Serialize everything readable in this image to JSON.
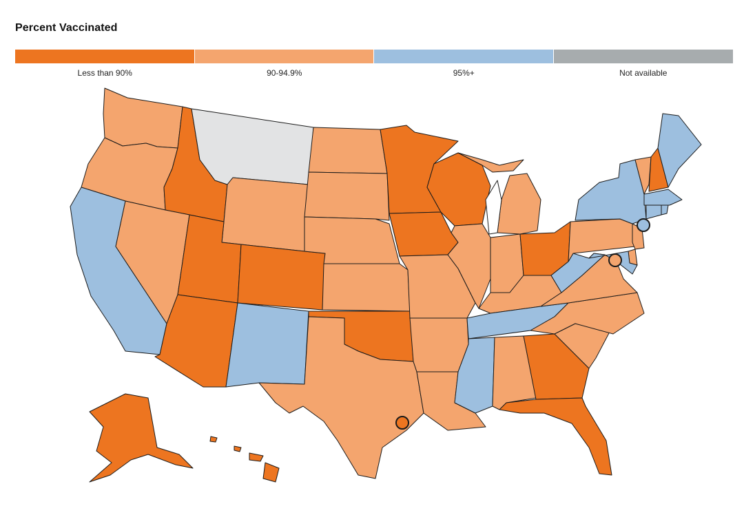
{
  "title": "Percent Vaccinated",
  "colors": {
    "less_than_90": "#ed7520",
    "range_90_94": "#f4a56e",
    "over_95": "#9dbfdf",
    "not_available": "#a7acae",
    "no_data_state": "#e2e3e4",
    "lakes": "#ffffff"
  },
  "legend": {
    "items": [
      {
        "label": "Less than 90%",
        "category": "less_than_90"
      },
      {
        "label": "90-94.9%",
        "category": "range_90_94"
      },
      {
        "label": "95%+",
        "category": "over_95"
      },
      {
        "label": "Not available",
        "category": "not_available"
      }
    ]
  },
  "states": {
    "WA": "range_90_94",
    "OR": "range_90_94",
    "CA": "over_95",
    "ID": "less_than_90",
    "NV": "range_90_94",
    "MT": "no_data_state",
    "WY": "range_90_94",
    "UT": "less_than_90",
    "AZ": "less_than_90",
    "CO": "less_than_90",
    "NM": "over_95",
    "ND": "range_90_94",
    "SD": "range_90_94",
    "NE": "range_90_94",
    "KS": "range_90_94",
    "OK": "less_than_90",
    "TX": "range_90_94",
    "MN": "less_than_90",
    "IA": "less_than_90",
    "MO": "range_90_94",
    "AR": "range_90_94",
    "LA": "range_90_94",
    "WI": "less_than_90",
    "IL": "range_90_94",
    "MI": "range_90_94",
    "IN": "range_90_94",
    "OH": "less_than_90",
    "KY": "range_90_94",
    "TN": "over_95",
    "MS": "over_95",
    "AL": "range_90_94",
    "GA": "less_than_90",
    "FL": "less_than_90",
    "SC": "range_90_94",
    "NC": "range_90_94",
    "VA": "range_90_94",
    "WV": "over_95",
    "PA": "range_90_94",
    "NY": "over_95",
    "NJ": "range_90_94",
    "DE": "range_90_94",
    "MD": "over_95",
    "VT": "range_90_94",
    "NH": "less_than_90",
    "ME": "over_95",
    "MA": "over_95",
    "CT": "over_95",
    "RI": "over_95",
    "AK": "less_than_90",
    "HI": "less_than_90"
  },
  "city_markers": {
    "NYC": "over_95",
    "Washington DC": "range_90_94",
    "Houston": "less_than_90"
  }
}
